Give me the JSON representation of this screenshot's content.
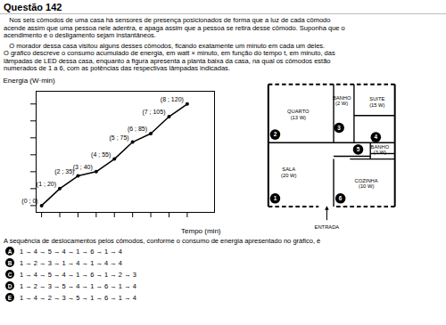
{
  "chart_data": {
    "type": "line",
    "title": "Questão 142",
    "x": [
      0,
      1,
      2,
      3,
      4,
      5,
      6,
      7,
      8
    ],
    "values": [
      0,
      20,
      35,
      40,
      55,
      75,
      85,
      105,
      120
    ],
    "value_labels": [
      "(0 ; 0)",
      "(1 ; 20)",
      "(2 ; 35)",
      "(3 ; 40)",
      "(4 ; 55)",
      "(5 ; 75)",
      "(6 ; 85)",
      "(7 ; 105)",
      "(8 ; 120)"
    ],
    "data_labels": true,
    "marker": "circle",
    "xlabel": "Tempo (min)",
    "ylabel": "Energia (W·min)",
    "xlim": [
      -0.3,
      9.5
    ],
    "ylim": [
      -8,
      135
    ],
    "xticks": [
      0,
      1,
      2,
      3,
      4,
      5,
      6,
      7,
      8
    ],
    "yticks": [
      0,
      20,
      40,
      60,
      80,
      100,
      120
    ],
    "tick_labels": false,
    "annotations": {
      "paragraphs": [
        "   Nos seis cômodos de uma casa há sensores de presença posicionados de forma que a luz de cada cômodo\nacende assim que uma pessoa nele adentra, e apaga assim que a pessoa se retira desse cômodo. Suponha que o\nacendimento e o desligamento sejam instantâneos.",
        "   O morador dessa casa visitou alguns desses cômodos, ficando exatamente um minuto em cada um deles.\nO gráfico descreve o consumo acumulado de energia, em watt × minuto, em função do tempo t, em minuto, das\nlâmpadas de LED dessa casa, enquanto a figura apresenta a planta baixa da casa, na qual os cômodos estão\nnumerados de 1 a 6, com as potências das respectivas lâmpadas indicadas."
      ],
      "question": "A sequência de deslocamentos pelos cômodos, conforme o consumo de energia apresentado no gráfico, é",
      "options": [
        {
          "letter": "A",
          "text": "1 → 4 → 5 → 4 → 1 → 6 → 1 → 4"
        },
        {
          "letter": "B",
          "text": "1 → 2 → 3 → 1 → 4 → 1 → 4 → 4"
        },
        {
          "letter": "C",
          "text": "1 → 4 → 5 → 4 → 1 → 6 → 1 → 2 → 3"
        },
        {
          "letter": "D",
          "text": "1 → 2 → 3 → 5 → 4 → 1 → 6 → 1 → 4"
        },
        {
          "letter": "E",
          "text": "1 → 4 → 2 → 3 → 5 → 1 → 6 → 1 → 4"
        }
      ],
      "plan_rooms": [
        "SALA\n(20 W)",
        "QUARTO\n(13 W)",
        "BANHO\n(2 W)",
        "SUITE\n(15 W)",
        "BANHO\n(3 W)",
        "COZINHA\n(10 W)"
      ],
      "plan_numbers": [
        "1",
        "2",
        "3",
        "4",
        "5",
        "6"
      ],
      "plan_entrance": "ENTRADA"
    }
  }
}
